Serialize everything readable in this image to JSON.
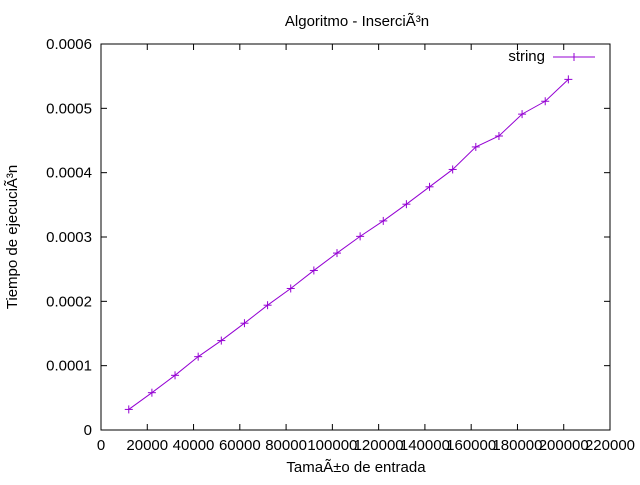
{
  "chart_data": {
    "type": "line",
    "title": "Algoritmo - InserciÃ³n",
    "xlabel": "TamaÃ±o de entrada",
    "ylabel": "Tiempo de ejecuciÃ³n",
    "xlim": [
      0,
      220000
    ],
    "ylim": [
      0,
      0.0006
    ],
    "x_ticks": [
      0,
      20000,
      40000,
      60000,
      80000,
      100000,
      120000,
      140000,
      160000,
      180000,
      200000,
      220000
    ],
    "x_tick_labels": [
      "0",
      "20000",
      "40000",
      "60000",
      "80000",
      "100000",
      "120000",
      "140000",
      "160000",
      "180000",
      "200000",
      "220000"
    ],
    "y_ticks": [
      0,
      0.0001,
      0.0002,
      0.0003,
      0.0004,
      0.0005,
      0.0006
    ],
    "y_tick_labels": [
      "0",
      "0.0001",
      "0.0002",
      "0.0003",
      "0.0004",
      "0.0005",
      "0.0006"
    ],
    "grid": false,
    "legend_position": "top-right",
    "series": [
      {
        "name": "string",
        "color": "#9400d3",
        "marker": "plus",
        "x": [
          12000,
          22000,
          32000,
          42000,
          52000,
          62000,
          72000,
          82000,
          92000,
          102000,
          112000,
          122000,
          132000,
          142000,
          152000,
          162000,
          172000,
          182000,
          192000,
          202000
        ],
        "y": [
          3.2e-05,
          5.8e-05,
          8.5e-05,
          0.000114,
          0.000139,
          0.000166,
          0.000194,
          0.00022,
          0.000248,
          0.000275,
          0.000301,
          0.000325,
          0.000351,
          0.000378,
          0.000405,
          0.00044,
          0.000457,
          0.000491,
          0.000511,
          0.000545
        ]
      }
    ]
  }
}
